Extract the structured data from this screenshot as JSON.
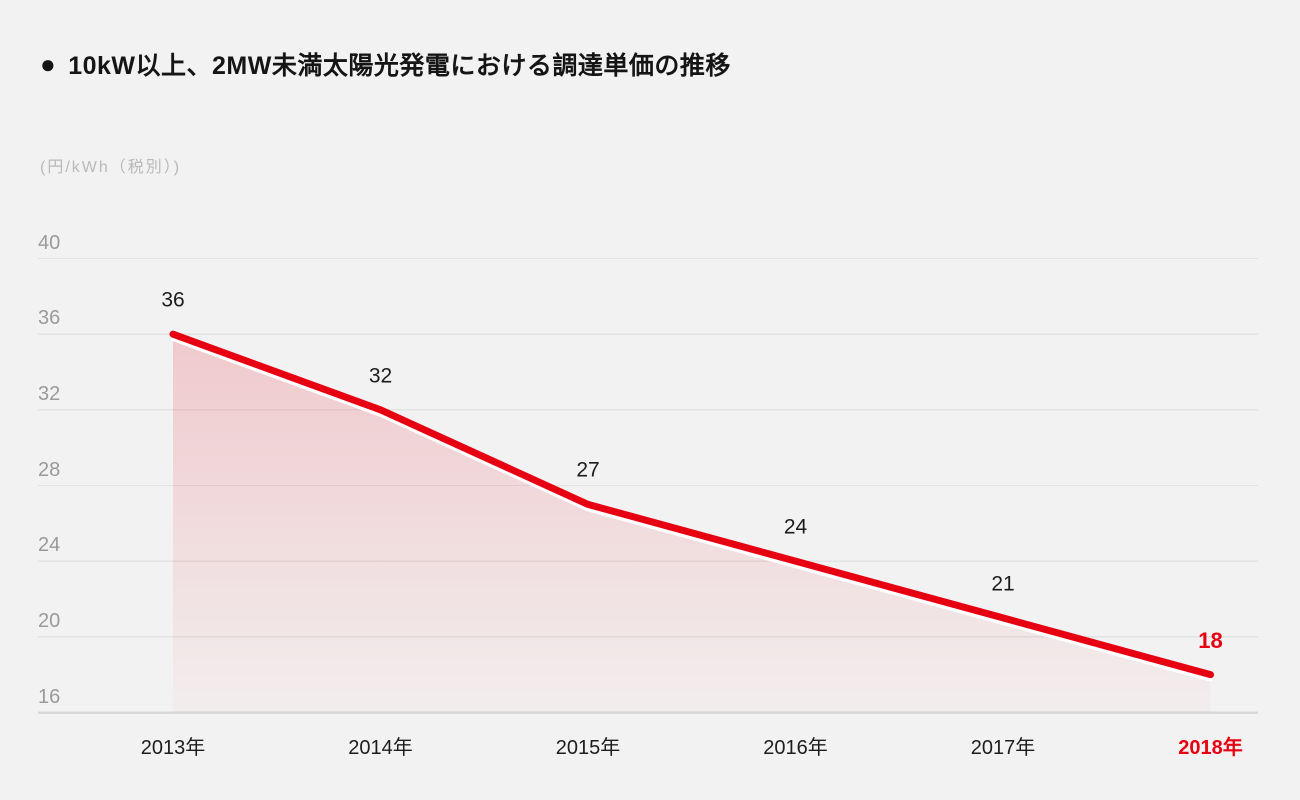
{
  "title": {
    "bullet": "●",
    "text": "10kW以上、2MW未満太陽光発電における調達単価の推移"
  },
  "colors": {
    "background": "#f2f2f2",
    "accent_red": "#e60012",
    "area_top": "rgba(230,0,18,0.17)",
    "area_bottom": "rgba(230,0,18,0.02)",
    "grid_line": "#e3e3e3",
    "axis_line": "#d9d9d9",
    "tick_text": "#9a9a9a",
    "label_text": "#1c1c1c",
    "unit_text": "#b9b9b9",
    "line_casing": "#ffffff"
  },
  "chart_data": {
    "type": "area",
    "title": "10kW以上、2MW未満太陽光発電における調達単価の推移",
    "unit_label": "(円/kWh（税別）)",
    "categories": [
      "2013年",
      "2014年",
      "2015年",
      "2016年",
      "2017年",
      "2018年"
    ],
    "values": [
      36,
      32,
      27,
      24,
      21,
      18
    ],
    "ylim": [
      16,
      40
    ],
    "yticks": [
      40,
      36,
      32,
      28,
      24,
      20,
      16
    ],
    "grid": "horizontal",
    "legend": "none",
    "highlight_last_category": true,
    "line_color": "#e60012"
  }
}
